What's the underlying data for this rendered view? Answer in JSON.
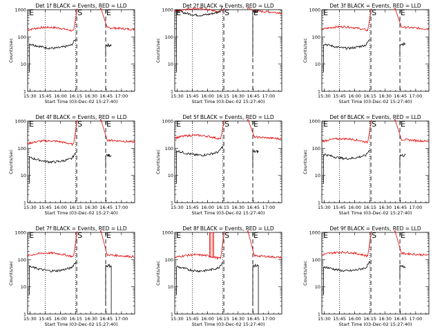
{
  "colors": {
    "events": "#000000",
    "lld": "#e00000",
    "background": "#ffffff"
  },
  "chart_data": {
    "type": "line",
    "layout": "3x3 grid",
    "common": {
      "xlabel": "Start Time (03-Dec-02 15:27:40)",
      "ylabel": "Counts/sec",
      "x_ticks": [
        "15:30",
        "15:45",
        "16:00",
        "16:15",
        "16:30",
        "16:45",
        "17:00"
      ],
      "x_tick_minutes": [
        930,
        945,
        960,
        975,
        990,
        1005,
        1020
      ],
      "xlim_minutes": [
        927.7,
        1033
      ],
      "y_scale": "log",
      "ylim": [
        1,
        1000
      ],
      "y_ticks": [
        "1",
        "10",
        "100",
        "1000"
      ],
      "markers": [
        {
          "label": "E",
          "time_minutes": 928.5
        },
        {
          "label": "S",
          "time_minutes": 976
        },
        {
          "label": "E",
          "time_minutes": 1004.5
        }
      ],
      "dotted_lines_minutes": [
        945,
        975
      ],
      "dashed_lines_minutes": [
        976,
        1004.5
      ]
    },
    "panels": [
      {
        "title": "Det 1f BLACK = Events, RED = LLD",
        "lld_level": 180,
        "lld_post": 220,
        "ev_level": 55,
        "ev_post": 50,
        "ev_drop": "gap",
        "spikes": []
      },
      {
        "title": "Det 2f BLACK = Events, RED = LLD",
        "lld_level": 880,
        "lld_post": 900,
        "ev_level": 900,
        "ev_post": 850,
        "ev_drop": "gap",
        "spikes": []
      },
      {
        "title": "Det 3f BLACK = Events, RED = LLD",
        "lld_level": 190,
        "lld_post": 230,
        "ev_level": 55,
        "ev_post": 55,
        "ev_drop": "gap",
        "spikes": []
      },
      {
        "title": "Det 4f BLACK = Events, RED = LLD",
        "lld_level": 150,
        "lld_post": 200,
        "ev_level": 45,
        "ev_post": 55,
        "ev_drop": "gap",
        "spikes": []
      },
      {
        "title": "Det 5f BLACK = Events, RED = LLD",
        "lld_level": 240,
        "lld_post": 260,
        "ev_level": 80,
        "ev_post": 75,
        "ev_drop": "gap",
        "spikes": []
      },
      {
        "title": "Det 6f BLACK = Events, RED = LLD",
        "lld_level": 180,
        "lld_post": 210,
        "ev_level": 60,
        "ev_post": 55,
        "ev_drop": "gap",
        "spikes": []
      },
      {
        "title": "Det 7f BLACK = Events, RED = LLD",
        "lld_level": 140,
        "lld_post": 150,
        "ev_level": 55,
        "ev_post": 60,
        "ev_drop": "tail",
        "spikes": []
      },
      {
        "title": "Det 8f BLACK = Events, RED = LLD",
        "lld_level": 120,
        "lld_post": 140,
        "ev_level": 55,
        "ev_post": 60,
        "ev_drop": "tail",
        "spikes": [
          962,
          965
        ]
      },
      {
        "title": "Det 9f BLACK = Events, RED = LLD",
        "lld_level": 150,
        "lld_post": 170,
        "ev_level": 55,
        "ev_post": 55,
        "ev_drop": "gap",
        "spikes": []
      }
    ]
  }
}
